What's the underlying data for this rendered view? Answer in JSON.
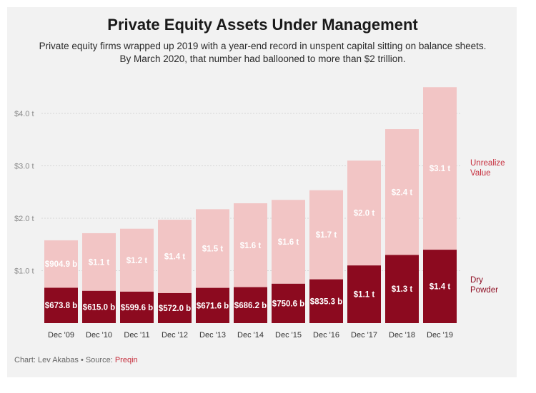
{
  "title": "Private Equity Assets Under Management",
  "subtitle": "Private equity firms wrapped up 2019 with a year-end record in unspent capital sitting on balance sheets.\nBy March 2020, that number had ballooned to more than $2 trillion.",
  "footer": {
    "credit": "Chart: Lev Akabas • Source: ",
    "source": "Preqin"
  },
  "colors": {
    "dry_powder": "#8c0a1f",
    "unrealized_value": "#f2c5c5",
    "unrealized_label": "#c62d3c",
    "dry_label": "#8c0a1f"
  },
  "chart_data": {
    "type": "bar",
    "stacked": true,
    "categories": [
      "Dec '09",
      "Dec '10",
      "Dec '11",
      "Dec '12",
      "Dec '13",
      "Dec '14",
      "Dec '15",
      "Dec '16",
      "Dec '17",
      "Dec '18",
      "Dec '19"
    ],
    "yticks": [
      1.0,
      2.0,
      3.0,
      4.0
    ],
    "ytick_labels": [
      "$1.0 t",
      "$2.0 t",
      "$3.0 t",
      "$4.0 t"
    ],
    "ylim": [
      0,
      4.6
    ],
    "grid": true,
    "series": [
      {
        "name": "Dry Powder",
        "values": [
          0.674,
          0.615,
          0.6,
          0.572,
          0.672,
          0.686,
          0.751,
          0.835,
          1.1,
          1.3,
          1.4
        ],
        "labels": [
          "$673.8 b",
          "$615.0 b",
          "$599.6 b",
          "$572.0 b",
          "$671.6 b",
          "$686.2 b",
          "$750.6 b",
          "$835.3 b",
          "$1.1 t",
          "$1.3 t",
          "$1.4 t"
        ]
      },
      {
        "name": "Unrealized Value",
        "values": [
          0.905,
          1.1,
          1.2,
          1.4,
          1.5,
          1.6,
          1.6,
          1.7,
          2.0,
          2.4,
          3.1
        ],
        "labels": [
          "$904.9 b",
          "$1.1 t",
          "$1.2 t",
          "$1.4 t",
          "$1.5 t",
          "$1.6 t",
          "$1.6 t",
          "$1.7 t",
          "$2.0 t",
          "$2.4 t",
          "$3.1 t"
        ]
      }
    ],
    "legend": {
      "placement": "right",
      "unrealized_label": "Unrealize\nValue",
      "dry_label": "Dry\nPowder"
    }
  }
}
